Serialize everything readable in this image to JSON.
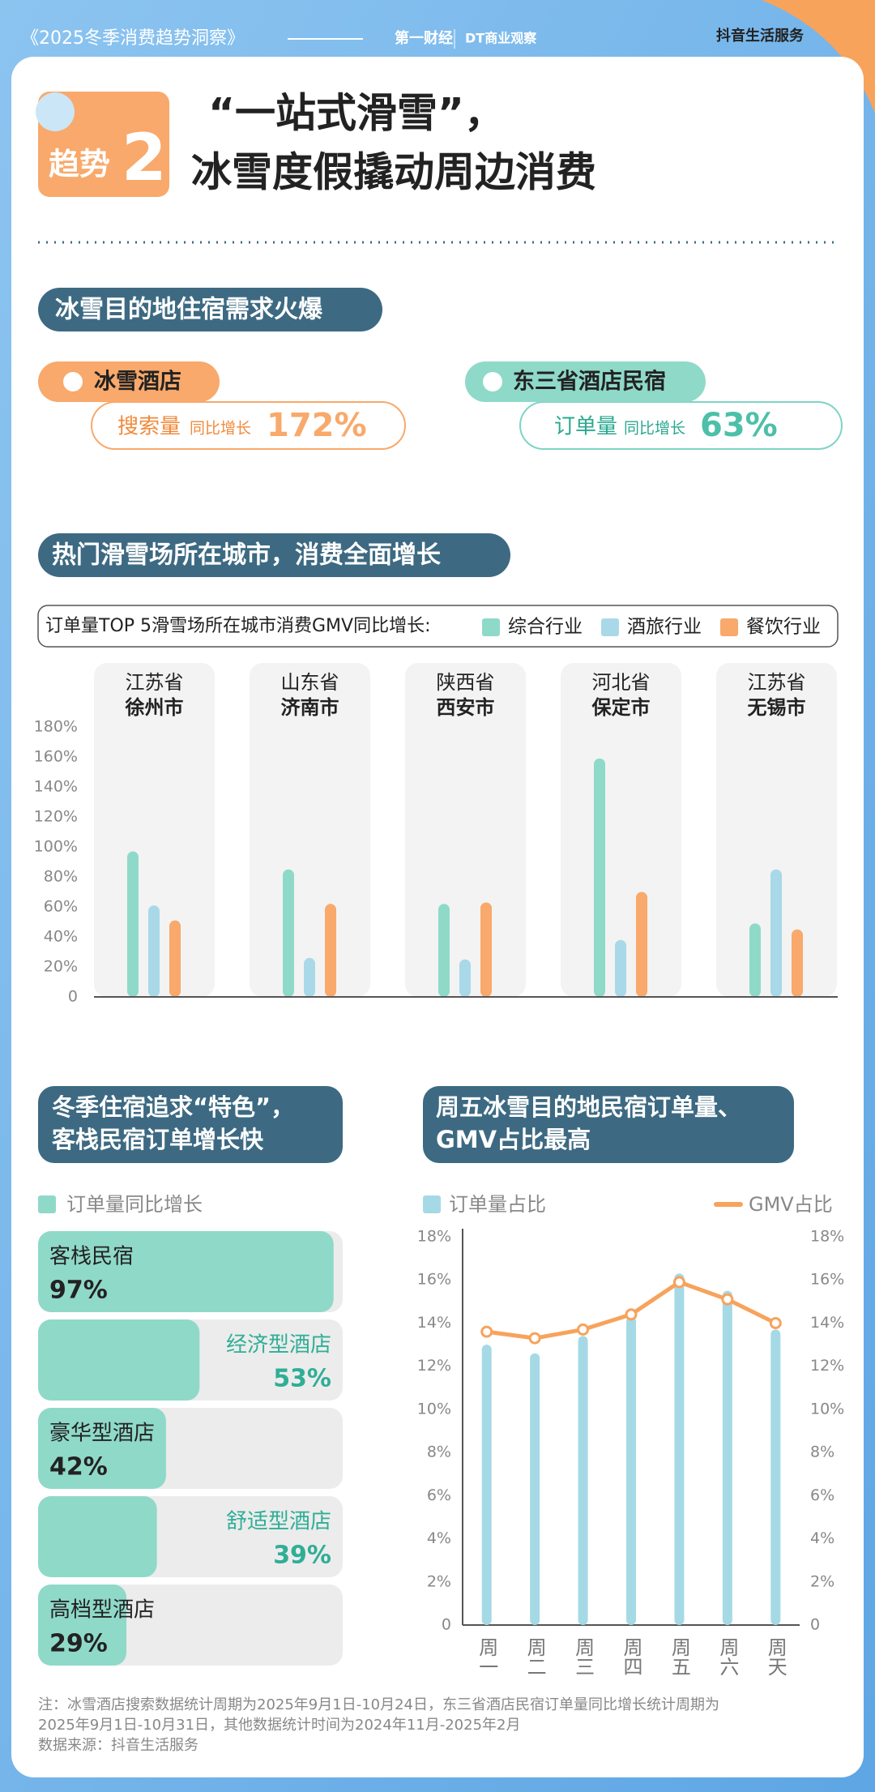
{
  "header": {
    "series_title": "《2025冬季消费趋势洞察》",
    "brand1": "第一财经",
    "brand2": "DT商业观察",
    "brand3": "抖音生活服务",
    "trend_label": "趋势",
    "trend_number": "2",
    "title_line1": "“一站式滑雪”，",
    "title_line2": "冰雪度假撬动周边消费"
  },
  "section1": {
    "heading": "冰雪目的地住宿需求火爆",
    "cards": [
      {
        "name": "冰雪酒店",
        "metric": "搜索量",
        "qualifier": "同比增长",
        "value": "172%"
      },
      {
        "name": "东三省酒店民宿",
        "metric": "订单量",
        "qualifier": "同比增长",
        "value": "63%"
      }
    ]
  },
  "chart_data": [
    {
      "type": "bar",
      "title": "热门滑雪场所在城市，消费全面增长",
      "subtitle": "订单量TOP 5滑雪场所在城市消费GMV同比增长:",
      "provinces": [
        "江苏省",
        "山东省",
        "陕西省",
        "河北省",
        "江苏省"
      ],
      "categories": [
        "徐州市",
        "济南市",
        "西安市",
        "保定市",
        "无锡市"
      ],
      "series": [
        {
          "name": "综合行业",
          "color": "#8fd9c9",
          "values": [
            97,
            85,
            62,
            159,
            49
          ]
        },
        {
          "name": "酒旅行业",
          "color": "#a9d9e8",
          "values": [
            61,
            26,
            25,
            38,
            85
          ]
        },
        {
          "name": "餐饮行业",
          "color": "#f8a96b",
          "values": [
            51,
            62,
            63,
            70,
            45
          ]
        }
      ],
      "ylim": [
        0,
        180
      ],
      "yticks": [
        0,
        {
          "value": 20,
          "label": "20%"
        },
        {
          "value": 40,
          "label": "40%"
        },
        {
          "value": 60,
          "label": "60%"
        },
        {
          "value": 80,
          "label": "80%"
        },
        {
          "value": 100,
          "label": "100%"
        },
        {
          "value": 120,
          "label": "120%"
        },
        {
          "value": 140,
          "label": "140%"
        },
        {
          "value": 160,
          "label": "160%"
        },
        {
          "value": 180,
          "label": "180%"
        }
      ],
      "grid": false
    },
    {
      "type": "hbar",
      "title": [
        "冬季住宿追求“特色”，",
        "客栈民宿订单增长快"
      ],
      "categories": [
        "客栈民宿",
        "经济型酒店",
        "豪华型酒店",
        "舒适型酒店",
        "高档型酒店"
      ],
      "series": [
        {
          "name": "订单量同比增长",
          "color": "#8fd9c9",
          "values": [
            97,
            53,
            42,
            39,
            29
          ],
          "value_labels": [
            "97%",
            "53%",
            "42%",
            "39%",
            "29%"
          ]
        }
      ],
      "xlim": [
        0,
        100
      ]
    },
    {
      "type": "combo",
      "title": [
        "周五冰雪目的地民宿订单量、",
        "GMV占比最高"
      ],
      "categories": [
        "周一",
        "周二",
        "周三",
        "周四",
        "周五",
        "周六",
        "周天"
      ],
      "series": [
        {
          "name": "订单量占比",
          "type": "bar",
          "color": "#a6d9e6",
          "values": [
            13.0,
            12.6,
            13.4,
            14.3,
            16.3,
            15.5,
            13.7
          ]
        },
        {
          "name": "GMV占比",
          "type": "line",
          "axis": "y2",
          "color": "#f7a35c",
          "values": [
            13.6,
            13.3,
            13.7,
            14.4,
            15.9,
            15.1,
            14.0
          ]
        }
      ],
      "ylim": [
        0,
        18
      ],
      "yticks": [
        0,
        {
          "value": 2,
          "label": "2%"
        },
        {
          "value": 4,
          "label": "4%"
        },
        {
          "value": 6,
          "label": "6%"
        },
        {
          "value": 8,
          "label": "8%"
        },
        {
          "value": 10,
          "label": "10%"
        },
        {
          "value": 12,
          "label": "12%"
        },
        {
          "value": 14,
          "label": "14%"
        },
        {
          "value": 16,
          "label": "16%"
        },
        {
          "value": 18,
          "label": "18%"
        }
      ],
      "y2lim": [
        0,
        18
      ],
      "y2ticks": [
        0,
        {
          "value": 2,
          "label": "2%"
        },
        {
          "value": 4,
          "label": "4%"
        },
        {
          "value": 6,
          "label": "6%"
        },
        {
          "value": 8,
          "label": "8%"
        },
        {
          "value": 10,
          "label": "10%"
        },
        {
          "value": 12,
          "label": "12%"
        },
        {
          "value": 14,
          "label": "14%"
        },
        {
          "value": 16,
          "label": "16%"
        },
        {
          "value": 18,
          "label": "18%"
        }
      ]
    }
  ],
  "footnote": {
    "lines": [
      "注：冰雪酒店搜索数据统计周期为2025年9月1日-10月24日，东三省酒店民宿订单量同比增长统计周期为",
      "2025年9月1日-10月31日，其他数据统计时间为2024年11月-2025年2月"
    ],
    "source": "数据来源：抖音生活服务"
  }
}
